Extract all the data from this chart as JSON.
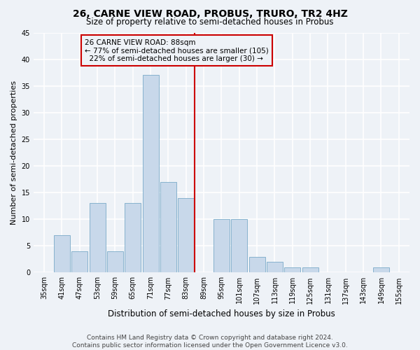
{
  "title": "26, CARNE VIEW ROAD, PROBUS, TRURO, TR2 4HZ",
  "subtitle": "Size of property relative to semi-detached houses in Probus",
  "xlabel": "Distribution of semi-detached houses by size in Probus",
  "ylabel": "Number of semi-detached properties",
  "footer_line1": "Contains HM Land Registry data © Crown copyright and database right 2024.",
  "footer_line2": "Contains public sector information licensed under the Open Government Licence v3.0.",
  "categories": [
    "35sqm",
    "41sqm",
    "47sqm",
    "53sqm",
    "59sqm",
    "65sqm",
    "71sqm",
    "77sqm",
    "83sqm",
    "89sqm",
    "95sqm",
    "101sqm",
    "107sqm",
    "113sqm",
    "119sqm",
    "125sqm",
    "131sqm",
    "137sqm",
    "143sqm",
    "149sqm",
    "155sqm"
  ],
  "values": [
    0,
    7,
    4,
    13,
    4,
    13,
    37,
    17,
    14,
    0,
    10,
    10,
    3,
    2,
    1,
    1,
    0,
    0,
    0,
    1,
    0
  ],
  "bar_color": "#c8d8ea",
  "bar_edge_color": "#7aaac8",
  "marker_label": "26 CARNE VIEW ROAD: 88sqm",
  "pct_smaller": 77,
  "n_smaller": 105,
  "pct_larger": 22,
  "n_larger": 30,
  "marker_line_color": "#cc0000",
  "ylim": [
    0,
    45
  ],
  "yticks": [
    0,
    5,
    10,
    15,
    20,
    25,
    30,
    35,
    40,
    45
  ],
  "background_color": "#eef2f7",
  "grid_color": "#ffffff",
  "title_fontsize": 10,
  "subtitle_fontsize": 8.5,
  "ylabel_fontsize": 8,
  "xlabel_fontsize": 8.5,
  "tick_fontsize": 7,
  "annot_fontsize": 7.5,
  "footer_fontsize": 6.5
}
